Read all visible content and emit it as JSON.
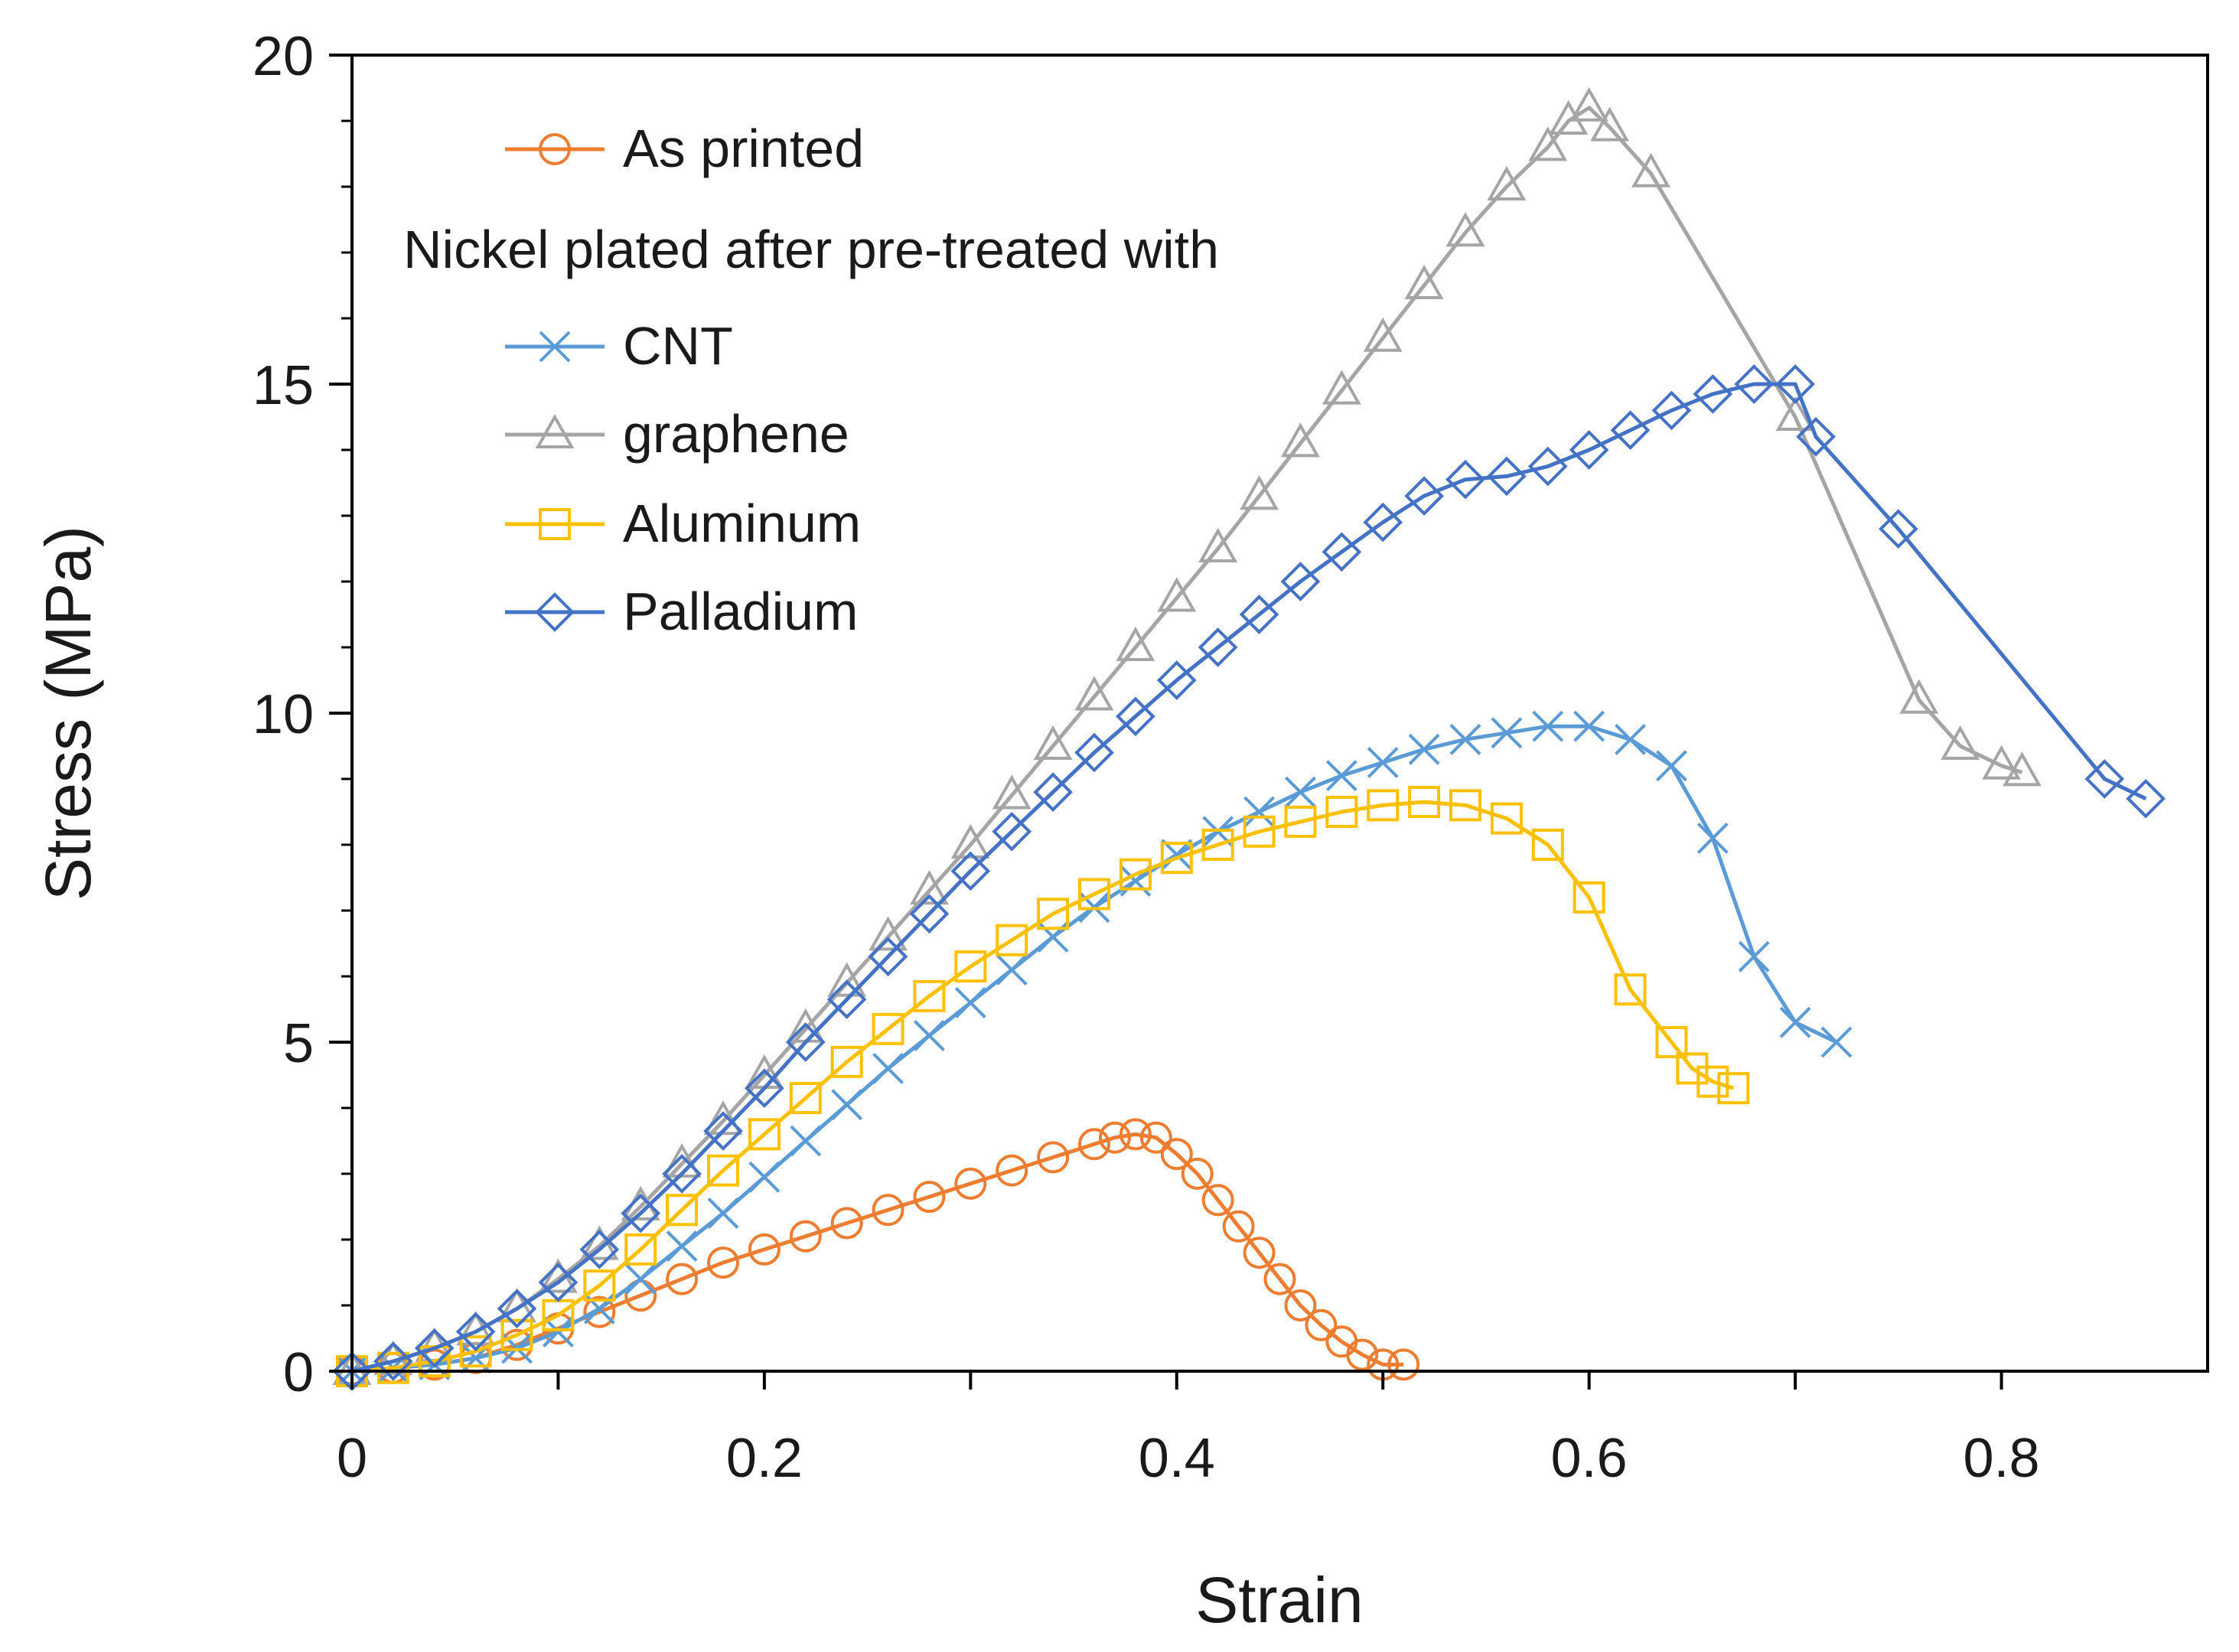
{
  "chart_data": {
    "type": "line",
    "title": "",
    "xlabel": "Strain",
    "ylabel": "Stress (MPa)",
    "xlim": [
      0,
      0.9
    ],
    "ylim": [
      0,
      20
    ],
    "xticks": [
      0,
      0.2,
      0.4,
      0.6,
      0.8
    ],
    "xtick_labels": [
      "0",
      "0.2",
      "0.4",
      "0.6",
      "0.8"
    ],
    "yticks": [
      0,
      5,
      10,
      15,
      20
    ],
    "ytick_labels": [
      "0",
      "5",
      "10",
      "15",
      "20"
    ],
    "grid": false,
    "legend_position": "top-left",
    "legend_heading": "Nickel plated after pre-treated with",
    "series": [
      {
        "name": "As printed",
        "color": "#ED7D31",
        "marker": "circle",
        "x": [
          0.0,
          0.02,
          0.04,
          0.06,
          0.08,
          0.1,
          0.12,
          0.14,
          0.16,
          0.18,
          0.2,
          0.22,
          0.24,
          0.26,
          0.28,
          0.3,
          0.32,
          0.34,
          0.36,
          0.37,
          0.38,
          0.39,
          0.4,
          0.41,
          0.42,
          0.43,
          0.44,
          0.45,
          0.46,
          0.47,
          0.48,
          0.49,
          0.5,
          0.51
        ],
        "y": [
          0.0,
          0.05,
          0.1,
          0.2,
          0.4,
          0.65,
          0.9,
          1.15,
          1.4,
          1.65,
          1.85,
          2.05,
          2.25,
          2.45,
          2.65,
          2.85,
          3.05,
          3.25,
          3.45,
          3.55,
          3.6,
          3.55,
          3.3,
          3.0,
          2.6,
          2.2,
          1.8,
          1.4,
          1.0,
          0.7,
          0.45,
          0.25,
          0.1,
          0.1
        ]
      },
      {
        "name": "CNT",
        "color": "#5B9BD5",
        "marker": "x",
        "x": [
          0.0,
          0.02,
          0.04,
          0.06,
          0.08,
          0.1,
          0.12,
          0.14,
          0.16,
          0.18,
          0.2,
          0.22,
          0.24,
          0.26,
          0.28,
          0.3,
          0.32,
          0.34,
          0.36,
          0.38,
          0.4,
          0.42,
          0.44,
          0.46,
          0.48,
          0.5,
          0.52,
          0.54,
          0.56,
          0.58,
          0.6,
          0.62,
          0.64,
          0.66,
          0.68,
          0.7,
          0.72
        ],
        "y": [
          0.0,
          0.05,
          0.1,
          0.2,
          0.35,
          0.6,
          0.95,
          1.4,
          1.9,
          2.4,
          2.95,
          3.5,
          4.05,
          4.6,
          5.1,
          5.6,
          6.1,
          6.6,
          7.05,
          7.45,
          7.85,
          8.2,
          8.5,
          8.8,
          9.05,
          9.25,
          9.45,
          9.6,
          9.7,
          9.8,
          9.8,
          9.6,
          9.2,
          8.1,
          6.3,
          5.3,
          5.0
        ]
      },
      {
        "name": "graphene",
        "color": "#A5A5A5",
        "marker": "triangle",
        "x": [
          0.0,
          0.02,
          0.04,
          0.06,
          0.08,
          0.1,
          0.12,
          0.14,
          0.16,
          0.18,
          0.2,
          0.22,
          0.24,
          0.26,
          0.28,
          0.3,
          0.32,
          0.34,
          0.36,
          0.38,
          0.4,
          0.42,
          0.44,
          0.46,
          0.48,
          0.5,
          0.52,
          0.54,
          0.56,
          0.58,
          0.59,
          0.6,
          0.61,
          0.63,
          0.7,
          0.76,
          0.78,
          0.8,
          0.81
        ],
        "y": [
          0.0,
          0.15,
          0.35,
          0.6,
          0.95,
          1.4,
          1.9,
          2.5,
          3.15,
          3.8,
          4.5,
          5.2,
          5.9,
          6.6,
          7.3,
          8.0,
          8.75,
          9.5,
          10.25,
          11.0,
          11.75,
          12.5,
          13.3,
          14.1,
          14.9,
          15.7,
          16.5,
          17.3,
          18.0,
          18.6,
          19.0,
          19.2,
          18.9,
          18.2,
          14.5,
          10.2,
          9.5,
          9.2,
          9.1
        ]
      },
      {
        "name": "Aluminum",
        "color": "#FFC000",
        "marker": "square",
        "x": [
          0.0,
          0.02,
          0.04,
          0.06,
          0.08,
          0.1,
          0.12,
          0.14,
          0.16,
          0.18,
          0.2,
          0.22,
          0.24,
          0.26,
          0.28,
          0.3,
          0.32,
          0.34,
          0.36,
          0.38,
          0.4,
          0.42,
          0.44,
          0.46,
          0.48,
          0.5,
          0.52,
          0.54,
          0.56,
          0.58,
          0.6,
          0.62,
          0.64,
          0.65,
          0.66,
          0.67
        ],
        "y": [
          0.0,
          0.05,
          0.15,
          0.3,
          0.55,
          0.85,
          1.3,
          1.85,
          2.45,
          3.05,
          3.6,
          4.15,
          4.7,
          5.2,
          5.7,
          6.15,
          6.55,
          6.95,
          7.25,
          7.55,
          7.8,
          8.0,
          8.2,
          8.35,
          8.5,
          8.6,
          8.65,
          8.6,
          8.4,
          8.0,
          7.2,
          5.8,
          5.0,
          4.6,
          4.4,
          4.3
        ]
      },
      {
        "name": "Palladium",
        "color": "#4472C4",
        "marker": "diamond",
        "x": [
          0.0,
          0.02,
          0.04,
          0.06,
          0.08,
          0.1,
          0.12,
          0.14,
          0.16,
          0.18,
          0.2,
          0.22,
          0.24,
          0.26,
          0.28,
          0.3,
          0.32,
          0.34,
          0.36,
          0.38,
          0.4,
          0.42,
          0.44,
          0.46,
          0.48,
          0.5,
          0.52,
          0.54,
          0.56,
          0.58,
          0.6,
          0.62,
          0.64,
          0.66,
          0.68,
          0.7,
          0.71,
          0.75,
          0.85,
          0.87
        ],
        "y": [
          0.0,
          0.15,
          0.35,
          0.6,
          0.95,
          1.35,
          1.85,
          2.4,
          3.0,
          3.65,
          4.3,
          5.0,
          5.65,
          6.3,
          6.95,
          7.6,
          8.2,
          8.8,
          9.4,
          9.95,
          10.5,
          11.0,
          11.5,
          12.0,
          12.45,
          12.9,
          13.3,
          13.55,
          13.6,
          13.75,
          14.0,
          14.3,
          14.6,
          14.85,
          15.0,
          15.0,
          14.2,
          12.8,
          9.0,
          8.7
        ]
      }
    ]
  }
}
